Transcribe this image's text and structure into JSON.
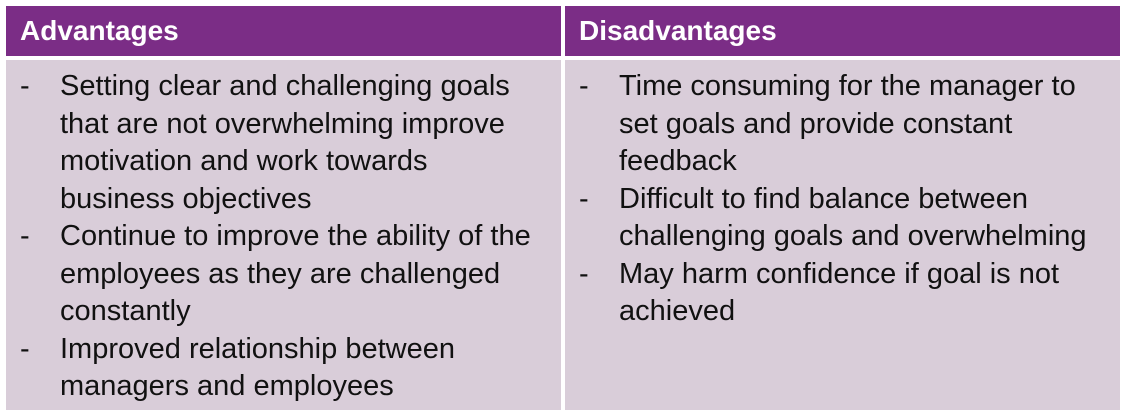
{
  "table": {
    "advantages": {
      "header": "Advantages",
      "items": [
        "Setting clear and challenging goals that are not overwhelming improve motivation and work towards business objectives",
        "Continue to improve the ability of the employees as they are challenged constantly",
        "Improved relationship between managers and employees"
      ]
    },
    "disadvantages": {
      "header": "Disadvantages",
      "items": [
        "Time consuming for the manager to set goals and provide constant feedback",
        "Difficult to find balance between challenging goals and overwhelming",
        "May harm confidence if goal is not achieved"
      ]
    },
    "bullet": "-",
    "colors": {
      "header_bg": "#7b2d86",
      "cell_bg": "#d9cdd9",
      "header_text": "#ffffff"
    }
  }
}
